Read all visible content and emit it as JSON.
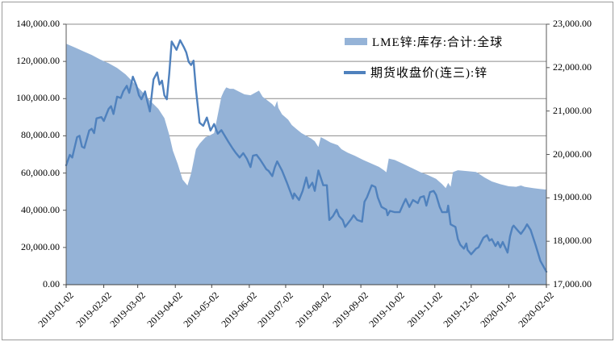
{
  "chart_data": {
    "type": "combo",
    "title": "",
    "background": "#ffffff",
    "grid": true,
    "gridline_color": "#8c8c8c",
    "axis_line_color": "#595959",
    "legend_position": "top-center",
    "left_axis": {
      "min": 0,
      "max": 140000,
      "step": 20000,
      "labels": [
        "0.00",
        "20,000.00",
        "40,000.00",
        "60,000.00",
        "80,000.00",
        "100,000.00",
        "120,000.00",
        "140,000.00"
      ]
    },
    "right_axis": {
      "min": 17000,
      "max": 23000,
      "step": 1000,
      "labels": [
        "17,000.00",
        "18,000.00",
        "19,000.00",
        "20,000.00",
        "21,000.00",
        "22,000.00",
        "23,000.00"
      ]
    },
    "x_axis": {
      "start": "2019-01-02",
      "end": "2020-02-02",
      "tick_labels": [
        "2019-01-02",
        "2019-02-02",
        "2019-03-02",
        "2019-04-02",
        "2019-05-02",
        "2019-06-02",
        "2019-07-02",
        "2019-08-02",
        "2019-09-02",
        "2019-10-02",
        "2019-11-02",
        "2019-12-02",
        "2020-01-02",
        "2020-02-02"
      ]
    },
    "series": [
      {
        "name": "LME锌:库存:合计:全球",
        "type": "area",
        "axis": "left",
        "color": "#95B3D7",
        "data": [
          [
            "2019-01-02",
            129500
          ],
          [
            "2019-01-09",
            127500
          ],
          [
            "2019-01-16",
            125500
          ],
          [
            "2019-01-23",
            123500
          ],
          [
            "2019-01-30",
            121000
          ],
          [
            "2019-02-06",
            119000
          ],
          [
            "2019-02-13",
            116500
          ],
          [
            "2019-02-20",
            113000
          ],
          [
            "2019-02-26",
            109000
          ],
          [
            "2019-03-06",
            103500
          ],
          [
            "2019-03-12",
            99000
          ],
          [
            "2019-03-19",
            94500
          ],
          [
            "2019-03-24",
            89500
          ],
          [
            "2019-03-28",
            80500
          ],
          [
            "2019-03-31",
            72000
          ],
          [
            "2019-04-04",
            64900
          ],
          [
            "2019-04-08",
            56500
          ],
          [
            "2019-04-12",
            53300
          ],
          [
            "2019-04-15",
            59800
          ],
          [
            "2019-04-17",
            66300
          ],
          [
            "2019-04-19",
            72800
          ],
          [
            "2019-04-22",
            75700
          ],
          [
            "2019-04-24",
            77200
          ],
          [
            "2019-04-27",
            79300
          ],
          [
            "2019-04-30",
            80100
          ],
          [
            "2019-05-04",
            81500
          ],
          [
            "2019-05-06",
            88000
          ],
          [
            "2019-05-08",
            94500
          ],
          [
            "2019-05-10",
            101000
          ],
          [
            "2019-05-12",
            103900
          ],
          [
            "2019-05-14",
            106000
          ],
          [
            "2019-05-17",
            105300
          ],
          [
            "2019-05-20",
            105300
          ],
          [
            "2019-05-24",
            103900
          ],
          [
            "2019-05-29",
            102300
          ],
          [
            "2019-06-03",
            101800
          ],
          [
            "2019-06-10",
            104300
          ],
          [
            "2019-06-13",
            101000
          ],
          [
            "2019-06-16",
            99500
          ],
          [
            "2019-06-21",
            97000
          ],
          [
            "2019-06-23",
            95500
          ],
          [
            "2019-06-25",
            98800
          ],
          [
            "2019-06-26",
            95000
          ],
          [
            "2019-06-29",
            91600
          ],
          [
            "2019-07-04",
            88700
          ],
          [
            "2019-07-07",
            85800
          ],
          [
            "2019-07-11",
            83600
          ],
          [
            "2019-07-15",
            81500
          ],
          [
            "2019-07-19",
            80000
          ],
          [
            "2019-07-23",
            78600
          ],
          [
            "2019-07-26",
            77100
          ],
          [
            "2019-07-28",
            75000
          ],
          [
            "2019-07-29",
            74000
          ],
          [
            "2019-07-31",
            79300
          ],
          [
            "2019-08-04",
            77900
          ],
          [
            "2019-08-08",
            76400
          ],
          [
            "2019-08-14",
            75000
          ],
          [
            "2019-08-17",
            72800
          ],
          [
            "2019-08-22",
            71000
          ],
          [
            "2019-08-28",
            69300
          ],
          [
            "2019-09-04",
            67000
          ],
          [
            "2019-09-11",
            65000
          ],
          [
            "2019-09-17",
            63300
          ],
          [
            "2019-09-21",
            61500
          ],
          [
            "2019-09-23",
            60400
          ],
          [
            "2019-09-25",
            67800
          ],
          [
            "2019-09-30",
            67000
          ],
          [
            "2019-10-07",
            64900
          ],
          [
            "2019-10-14",
            62700
          ],
          [
            "2019-10-21",
            60500
          ],
          [
            "2019-10-27",
            59000
          ],
          [
            "2019-11-03",
            56900
          ],
          [
            "2019-11-08",
            54000
          ],
          [
            "2019-11-11",
            51900
          ],
          [
            "2019-11-13",
            54700
          ],
          [
            "2019-11-15",
            52600
          ],
          [
            "2019-11-17",
            60500
          ],
          [
            "2019-11-21",
            61500
          ],
          [
            "2019-11-29",
            61000
          ],
          [
            "2019-12-06",
            60600
          ],
          [
            "2019-12-13",
            57600
          ],
          [
            "2019-12-19",
            55500
          ],
          [
            "2019-12-26",
            54000
          ],
          [
            "2020-01-02",
            52900
          ],
          [
            "2020-01-08",
            52600
          ],
          [
            "2020-01-12",
            53300
          ],
          [
            "2020-01-15",
            52600
          ],
          [
            "2020-01-22",
            51900
          ],
          [
            "2020-01-28",
            51400
          ],
          [
            "2020-02-02",
            51100
          ]
        ]
      },
      {
        "name": "期货收盘价(连三):锌",
        "type": "line",
        "axis": "right",
        "color": "#4F81BD",
        "data": [
          [
            "2019-01-02",
            19750
          ],
          [
            "2019-01-05",
            19990
          ],
          [
            "2019-01-07",
            19930
          ],
          [
            "2019-01-11",
            20400
          ],
          [
            "2019-01-13",
            20430
          ],
          [
            "2019-01-15",
            20180
          ],
          [
            "2019-01-17",
            20150
          ],
          [
            "2019-01-21",
            20550
          ],
          [
            "2019-01-23",
            20590
          ],
          [
            "2019-01-25",
            20490
          ],
          [
            "2019-01-27",
            20830
          ],
          [
            "2019-01-31",
            20860
          ],
          [
            "2019-02-02",
            20770
          ],
          [
            "2019-02-06",
            21050
          ],
          [
            "2019-02-08",
            21110
          ],
          [
            "2019-02-10",
            20930
          ],
          [
            "2019-02-13",
            21330
          ],
          [
            "2019-02-16",
            21300
          ],
          [
            "2019-02-18",
            21450
          ],
          [
            "2019-02-21",
            21580
          ],
          [
            "2019-02-23",
            21420
          ],
          [
            "2019-02-26",
            21790
          ],
          [
            "2019-03-01",
            21580
          ],
          [
            "2019-03-03",
            21360
          ],
          [
            "2019-03-05",
            21270
          ],
          [
            "2019-03-08",
            21450
          ],
          [
            "2019-03-10",
            21210
          ],
          [
            "2019-03-12",
            20990
          ],
          [
            "2019-03-15",
            21730
          ],
          [
            "2019-03-18",
            21890
          ],
          [
            "2019-03-20",
            21610
          ],
          [
            "2019-03-22",
            21700
          ],
          [
            "2019-03-24",
            21360
          ],
          [
            "2019-03-26",
            21270
          ],
          [
            "2019-03-28",
            21860
          ],
          [
            "2019-03-30",
            22600
          ],
          [
            "2019-04-03",
            22410
          ],
          [
            "2019-04-06",
            22630
          ],
          [
            "2019-04-09",
            22475
          ],
          [
            "2019-04-11",
            22350
          ],
          [
            "2019-04-13",
            22130
          ],
          [
            "2019-04-15",
            22060
          ],
          [
            "2019-04-17",
            22160
          ],
          [
            "2019-04-19",
            21500
          ],
          [
            "2019-04-22",
            20730
          ],
          [
            "2019-04-25",
            20660
          ],
          [
            "2019-04-28",
            20850
          ],
          [
            "2019-05-01",
            20550
          ],
          [
            "2019-05-04",
            20700
          ],
          [
            "2019-05-07",
            20480
          ],
          [
            "2019-05-10",
            20560
          ],
          [
            "2019-05-13",
            20420
          ],
          [
            "2019-05-16",
            20280
          ],
          [
            "2019-05-19",
            20150
          ],
          [
            "2019-05-22",
            20030
          ],
          [
            "2019-05-25",
            19930
          ],
          [
            "2019-05-28",
            20030
          ],
          [
            "2019-05-31",
            19900
          ],
          [
            "2019-06-03",
            19710
          ],
          [
            "2019-06-05",
            19970
          ],
          [
            "2019-06-08",
            19990
          ],
          [
            "2019-06-11",
            19880
          ],
          [
            "2019-06-14",
            19750
          ],
          [
            "2019-06-16",
            19660
          ],
          [
            "2019-06-18",
            19620
          ],
          [
            "2019-06-21",
            19500
          ],
          [
            "2019-06-23",
            19700
          ],
          [
            "2019-06-25",
            19840
          ],
          [
            "2019-06-29",
            19630
          ],
          [
            "2019-07-03",
            19350
          ],
          [
            "2019-07-08",
            18980
          ],
          [
            "2019-07-09",
            19100
          ],
          [
            "2019-07-13",
            18950
          ],
          [
            "2019-07-16",
            19160
          ],
          [
            "2019-07-19",
            19470
          ],
          [
            "2019-07-21",
            19230
          ],
          [
            "2019-07-24",
            19350
          ],
          [
            "2019-07-26",
            19160
          ],
          [
            "2019-07-29",
            19630
          ],
          [
            "2019-08-02",
            19290
          ],
          [
            "2019-08-05",
            19290
          ],
          [
            "2019-08-07",
            18490
          ],
          [
            "2019-08-10",
            18580
          ],
          [
            "2019-08-13",
            18730
          ],
          [
            "2019-08-15",
            18580
          ],
          [
            "2019-08-18",
            18490
          ],
          [
            "2019-08-20",
            18330
          ],
          [
            "2019-08-25",
            18510
          ],
          [
            "2019-08-27",
            18600
          ],
          [
            "2019-08-30",
            18490
          ],
          [
            "2019-09-03",
            18450
          ],
          [
            "2019-09-05",
            18910
          ],
          [
            "2019-09-07",
            19010
          ],
          [
            "2019-09-11",
            19290
          ],
          [
            "2019-09-14",
            19250
          ],
          [
            "2019-09-16",
            19010
          ],
          [
            "2019-09-19",
            18790
          ],
          [
            "2019-09-23",
            18730
          ],
          [
            "2019-09-24",
            18600
          ],
          [
            "2019-09-26",
            18700
          ],
          [
            "2019-09-30",
            18670
          ],
          [
            "2019-10-04",
            18670
          ],
          [
            "2019-10-07",
            18860
          ],
          [
            "2019-10-09",
            18975
          ],
          [
            "2019-10-12",
            18790
          ],
          [
            "2019-10-15",
            18950
          ],
          [
            "2019-10-19",
            18880
          ],
          [
            "2019-10-21",
            19010
          ],
          [
            "2019-10-24",
            19040
          ],
          [
            "2019-10-26",
            18820
          ],
          [
            "2019-10-29",
            19130
          ],
          [
            "2019-11-01",
            19160
          ],
          [
            "2019-11-03",
            19070
          ],
          [
            "2019-11-06",
            18790
          ],
          [
            "2019-11-08",
            18670
          ],
          [
            "2019-11-12",
            18670
          ],
          [
            "2019-11-13",
            18820
          ],
          [
            "2019-11-15",
            18390
          ],
          [
            "2019-11-17",
            18360
          ],
          [
            "2019-11-19",
            18330
          ],
          [
            "2019-11-21",
            18050
          ],
          [
            "2019-11-23",
            17920
          ],
          [
            "2019-11-26",
            17830
          ],
          [
            "2019-11-28",
            17950
          ],
          [
            "2019-11-29",
            17800
          ],
          [
            "2019-12-02",
            17700
          ],
          [
            "2019-12-06",
            17830
          ],
          [
            "2019-12-08",
            17860
          ],
          [
            "2019-12-12",
            18080
          ],
          [
            "2019-12-15",
            18140
          ],
          [
            "2019-12-17",
            18015
          ],
          [
            "2019-12-19",
            18050
          ],
          [
            "2019-12-22",
            17890
          ],
          [
            "2019-12-24",
            17985
          ],
          [
            "2019-12-26",
            17860
          ],
          [
            "2019-12-28",
            17985
          ],
          [
            "2020-01-01",
            17740
          ],
          [
            "2020-01-03",
            18110
          ],
          [
            "2020-01-05",
            18325
          ],
          [
            "2020-01-06",
            18360
          ],
          [
            "2020-01-10",
            18230
          ],
          [
            "2020-01-12",
            18170
          ],
          [
            "2020-01-15",
            18290
          ],
          [
            "2020-01-17",
            18390
          ],
          [
            "2020-01-20",
            18260
          ],
          [
            "2020-01-24",
            17920
          ],
          [
            "2020-01-28",
            17550
          ],
          [
            "2020-02-02",
            17300
          ]
        ]
      }
    ]
  },
  "legend": {
    "area_label": "LME锌:库存:合计:全球",
    "line_label": "期货收盘价(连三):锌"
  }
}
